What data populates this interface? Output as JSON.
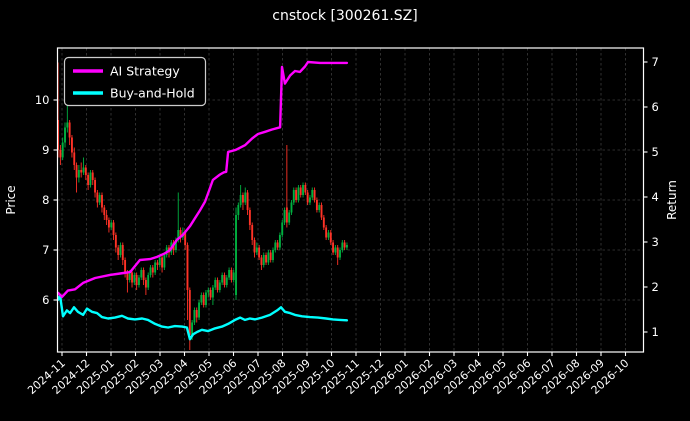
{
  "title": "cnstock [300261.SZ]",
  "colors": {
    "background": "#000000",
    "text": "#ffffff",
    "grid": "#3d3d3d",
    "spine": "#ffffff",
    "candle_up": "#00b140",
    "candle_down": "#ff3226",
    "ai_strategy": "#ff00ff",
    "buy_and_hold": "#00ffff",
    "legend_border": "#cccccc"
  },
  "legend": {
    "entries": [
      {
        "label": "AI Strategy",
        "color": "#ff00ff"
      },
      {
        "label": "Buy-and-Hold",
        "color": "#00ffff"
      }
    ]
  },
  "chart_data": {
    "type": "candlestick+line",
    "title": "cnstock [300261.SZ]",
    "ylabel_left": "Price",
    "ylabel_right": "Return",
    "grid": true,
    "legend_position": "upper left",
    "x_tick_labels": [
      "2024-11",
      "2024-12",
      "2025-01",
      "2025-02",
      "2025-03",
      "2025-04",
      "2025-05",
      "2025-06",
      "2025-07",
      "2025-08",
      "2025-09",
      "2025-10",
      "2025-11",
      "2025-12",
      "2026-01",
      "2026-02",
      "2026-03",
      "2026-04",
      "2026-05",
      "2026-06",
      "2026-07",
      "2026-08",
      "2026-09",
      "2026-10"
    ],
    "yticks_left": [
      6,
      7,
      8,
      9,
      10
    ],
    "ylim_left": [
      4.96,
      11.04
    ],
    "yticks_right": [
      1,
      2,
      3,
      4,
      5,
      6,
      7
    ],
    "ylim_right": [
      0.56,
      7.31
    ],
    "candles_note": "daily OHLC approximated at 126 bars, from 2024-11 through mid 2025-11; x axis extends empty to 2026-10",
    "candles_x_start_month": -0.16,
    "candles_x_step_month": 0.09432,
    "ohlc": [
      [
        9.6,
        10.75,
        8.85,
        9.0
      ],
      [
        9.0,
        9.1,
        8.7,
        8.85
      ],
      [
        8.85,
        9.25,
        8.8,
        9.15
      ],
      [
        9.15,
        9.55,
        9.05,
        9.45
      ],
      [
        9.45,
        9.9,
        9.35,
        9.55
      ],
      [
        9.55,
        9.6,
        9.1,
        9.25
      ],
      [
        9.25,
        9.3,
        8.85,
        8.95
      ],
      [
        8.95,
        9.05,
        8.6,
        8.7
      ],
      [
        8.7,
        8.75,
        8.15,
        8.45
      ],
      [
        8.45,
        8.7,
        8.35,
        8.6
      ],
      [
        8.6,
        8.75,
        8.45,
        8.55
      ],
      [
        8.55,
        8.85,
        8.5,
        8.65
      ],
      [
        8.65,
        8.7,
        8.4,
        8.5
      ],
      [
        8.5,
        8.55,
        8.2,
        8.3
      ],
      [
        8.3,
        8.6,
        8.25,
        8.55
      ],
      [
        8.55,
        8.6,
        8.3,
        8.4
      ],
      [
        8.4,
        8.45,
        8.05,
        8.15
      ],
      [
        8.15,
        8.2,
        7.85,
        7.95
      ],
      [
        7.95,
        8.15,
        7.9,
        8.1
      ],
      [
        8.1,
        8.15,
        7.75,
        7.85
      ],
      [
        7.85,
        7.9,
        7.6,
        7.7
      ],
      [
        7.7,
        7.8,
        7.5,
        7.6
      ],
      [
        7.6,
        7.65,
        7.35,
        7.45
      ],
      [
        7.45,
        7.6,
        7.4,
        7.55
      ],
      [
        7.55,
        7.6,
        7.2,
        7.3
      ],
      [
        7.3,
        7.35,
        6.95,
        7.05
      ],
      [
        7.05,
        7.1,
        6.8,
        6.9
      ],
      [
        6.9,
        7.15,
        6.85,
        7.1
      ],
      [
        7.1,
        7.15,
        6.7,
        6.8
      ],
      [
        6.8,
        6.85,
        6.45,
        6.55
      ],
      [
        6.55,
        6.6,
        6.15,
        6.4
      ],
      [
        6.4,
        6.6,
        6.35,
        6.55
      ],
      [
        6.55,
        6.6,
        6.25,
        6.35
      ],
      [
        6.35,
        6.55,
        6.3,
        6.5
      ],
      [
        6.5,
        6.55,
        6.2,
        6.3
      ],
      [
        6.3,
        6.5,
        6.25,
        6.45
      ],
      [
        6.45,
        6.65,
        6.4,
        6.6
      ],
      [
        6.6,
        6.65,
        6.3,
        6.4
      ],
      [
        6.4,
        6.45,
        6.1,
        6.25
      ],
      [
        6.25,
        6.55,
        6.2,
        6.5
      ],
      [
        6.5,
        6.7,
        6.45,
        6.65
      ],
      [
        6.65,
        6.7,
        6.45,
        6.55
      ],
      [
        6.55,
        6.8,
        6.5,
        6.75
      ],
      [
        6.75,
        6.8,
        6.6,
        6.7
      ],
      [
        6.7,
        6.9,
        6.65,
        6.85
      ],
      [
        6.85,
        6.9,
        6.55,
        6.65
      ],
      [
        6.65,
        6.95,
        6.6,
        6.9
      ],
      [
        6.9,
        7.1,
        6.85,
        7.05
      ],
      [
        7.05,
        7.1,
        6.85,
        6.95
      ],
      [
        6.95,
        7.2,
        6.9,
        7.15
      ],
      [
        7.15,
        7.2,
        6.9,
        7.0
      ],
      [
        7.0,
        7.25,
        6.95,
        7.2
      ],
      [
        7.2,
        8.15,
        7.15,
        7.4
      ],
      [
        7.4,
        7.45,
        7.15,
        7.25
      ],
      [
        7.25,
        7.45,
        7.2,
        7.35
      ],
      [
        7.35,
        7.4,
        7.0,
        7.1
      ],
      [
        7.1,
        7.15,
        5.6,
        6.2
      ],
      [
        6.2,
        6.25,
        5.0,
        5.3
      ],
      [
        5.3,
        5.6,
        5.2,
        5.55
      ],
      [
        5.55,
        5.85,
        5.5,
        5.8
      ],
      [
        5.8,
        5.85,
        5.55,
        5.65
      ],
      [
        5.65,
        6.0,
        5.6,
        5.95
      ],
      [
        5.95,
        6.15,
        5.9,
        6.1
      ],
      [
        6.1,
        6.15,
        5.85,
        5.9
      ],
      [
        5.9,
        6.2,
        5.85,
        6.15
      ],
      [
        6.15,
        6.25,
        6.05,
        6.2
      ],
      [
        6.2,
        6.25,
        6.0,
        6.05
      ],
      [
        6.05,
        6.3,
        5.9,
        6.25
      ],
      [
        6.25,
        6.45,
        6.2,
        6.4
      ],
      [
        6.4,
        6.45,
        6.15,
        6.2
      ],
      [
        6.2,
        6.4,
        6.15,
        6.35
      ],
      [
        6.35,
        6.55,
        6.3,
        6.5
      ],
      [
        6.5,
        6.55,
        6.25,
        6.3
      ],
      [
        6.3,
        6.5,
        6.25,
        6.45
      ],
      [
        6.45,
        6.65,
        6.4,
        6.6
      ],
      [
        6.6,
        6.65,
        6.35,
        6.4
      ],
      [
        6.4,
        6.6,
        6.35,
        6.55
      ],
      [
        6.1,
        7.85,
        6.0,
        7.7
      ],
      [
        7.7,
        7.95,
        7.6,
        7.9
      ],
      [
        7.9,
        8.3,
        7.85,
        8.1
      ],
      [
        8.1,
        8.15,
        7.8,
        7.95
      ],
      [
        7.95,
        8.25,
        7.9,
        8.15
      ],
      [
        8.15,
        8.2,
        7.7,
        7.8
      ],
      [
        7.8,
        7.85,
        7.4,
        7.5
      ],
      [
        7.5,
        7.55,
        7.1,
        7.2
      ],
      [
        7.2,
        7.25,
        6.85,
        6.95
      ],
      [
        6.95,
        7.15,
        6.9,
        7.05
      ],
      [
        7.05,
        7.1,
        6.8,
        6.85
      ],
      [
        6.85,
        6.9,
        6.6,
        6.7
      ],
      [
        6.7,
        6.95,
        6.65,
        6.9
      ],
      [
        6.9,
        6.95,
        6.7,
        6.75
      ],
      [
        6.75,
        7.0,
        6.7,
        6.95
      ],
      [
        6.95,
        7.0,
        6.75,
        6.8
      ],
      [
        6.8,
        7.05,
        6.75,
        7.0
      ],
      [
        7.0,
        7.2,
        6.95,
        7.15
      ],
      [
        7.15,
        7.2,
        7.0,
        7.05
      ],
      [
        7.05,
        7.35,
        7.0,
        7.3
      ],
      [
        7.3,
        7.6,
        7.25,
        7.55
      ],
      [
        7.55,
        7.85,
        7.5,
        7.8
      ],
      [
        7.85,
        9.1,
        7.45,
        7.55
      ],
      [
        7.55,
        7.8,
        7.5,
        7.75
      ],
      [
        7.75,
        8.0,
        7.7,
        7.95
      ],
      [
        7.95,
        8.25,
        7.9,
        8.2
      ],
      [
        8.2,
        8.25,
        7.95,
        8.0
      ],
      [
        8.0,
        8.3,
        7.95,
        8.25
      ],
      [
        8.25,
        8.3,
        8.05,
        8.1
      ],
      [
        8.1,
        8.35,
        8.05,
        8.3
      ],
      [
        8.3,
        8.35,
        8.1,
        8.15
      ],
      [
        8.15,
        8.2,
        7.9,
        7.95
      ],
      [
        7.95,
        8.1,
        7.9,
        8.05
      ],
      [
        8.05,
        8.25,
        8.0,
        8.2
      ],
      [
        8.2,
        8.25,
        7.95,
        8.0
      ],
      [
        8.0,
        8.05,
        7.75,
        7.8
      ],
      [
        7.8,
        7.95,
        7.75,
        7.9
      ],
      [
        7.9,
        7.95,
        7.6,
        7.65
      ],
      [
        7.65,
        7.7,
        7.4,
        7.45
      ],
      [
        7.45,
        7.5,
        7.2,
        7.25
      ],
      [
        7.25,
        7.4,
        7.2,
        7.35
      ],
      [
        7.35,
        7.4,
        7.1,
        7.15
      ],
      [
        7.15,
        7.2,
        6.9,
        6.95
      ],
      [
        6.95,
        7.1,
        6.9,
        7.05
      ],
      [
        7.05,
        7.1,
        6.7,
        6.85
      ],
      [
        6.85,
        7.05,
        6.8,
        7.0
      ],
      [
        7.0,
        7.2,
        6.95,
        7.15
      ],
      [
        7.15,
        7.2,
        7.0,
        7.05
      ],
      [
        7.05,
        7.15,
        7.0,
        7.1
      ]
    ],
    "series": [
      {
        "name": "AI Strategy",
        "axis": "right",
        "color": "#ff00ff",
        "points": [
          [
            -0.16,
            1.87
          ],
          [
            0,
            1.78
          ],
          [
            0.24,
            1.92
          ],
          [
            0.53,
            1.95
          ],
          [
            0.86,
            2.09
          ],
          [
            1.35,
            2.2
          ],
          [
            1.96,
            2.27
          ],
          [
            2.37,
            2.3
          ],
          [
            2.78,
            2.33
          ],
          [
            3.18,
            2.6
          ],
          [
            3.59,
            2.62
          ],
          [
            3.88,
            2.67
          ],
          [
            4.2,
            2.75
          ],
          [
            4.41,
            2.82
          ],
          [
            4.69,
            3.05
          ],
          [
            4.94,
            3.16
          ],
          [
            5.22,
            3.35
          ],
          [
            5.43,
            3.53
          ],
          [
            5.63,
            3.7
          ],
          [
            5.84,
            3.9
          ],
          [
            6.04,
            4.2
          ],
          [
            6.16,
            4.38
          ],
          [
            6.45,
            4.5
          ],
          [
            6.61,
            4.55
          ],
          [
            6.7,
            4.56
          ],
          [
            6.78,
            5.0
          ],
          [
            7.1,
            5.05
          ],
          [
            7.47,
            5.15
          ],
          [
            7.76,
            5.3
          ],
          [
            8.0,
            5.4
          ],
          [
            8.29,
            5.45
          ],
          [
            8.57,
            5.5
          ],
          [
            8.9,
            5.55
          ],
          [
            8.98,
            6.89
          ],
          [
            9.1,
            6.52
          ],
          [
            9.31,
            6.7
          ],
          [
            9.51,
            6.8
          ],
          [
            9.71,
            6.78
          ],
          [
            9.92,
            6.9
          ],
          [
            10.04,
            7.0
          ],
          [
            10.53,
            6.98
          ],
          [
            11.14,
            6.98
          ],
          [
            11.63,
            6.98
          ]
        ]
      },
      {
        "name": "Buy-and-Hold",
        "axis": "right",
        "color": "#00ffff",
        "points": [
          [
            -0.16,
            1.72
          ],
          [
            -0.08,
            1.82
          ],
          [
            0.04,
            1.35
          ],
          [
            0.2,
            1.48
          ],
          [
            0.33,
            1.42
          ],
          [
            0.49,
            1.55
          ],
          [
            0.65,
            1.45
          ],
          [
            0.86,
            1.38
          ],
          [
            1.02,
            1.52
          ],
          [
            1.22,
            1.45
          ],
          [
            1.43,
            1.42
          ],
          [
            1.63,
            1.33
          ],
          [
            1.88,
            1.3
          ],
          [
            2.16,
            1.32
          ],
          [
            2.45,
            1.36
          ],
          [
            2.69,
            1.3
          ],
          [
            2.98,
            1.28
          ],
          [
            3.27,
            1.3
          ],
          [
            3.51,
            1.27
          ],
          [
            3.8,
            1.18
          ],
          [
            4.08,
            1.12
          ],
          [
            4.33,
            1.1
          ],
          [
            4.61,
            1.13
          ],
          [
            4.9,
            1.12
          ],
          [
            5.1,
            1.1
          ],
          [
            5.22,
            0.84
          ],
          [
            5.35,
            0.95
          ],
          [
            5.51,
            1.0
          ],
          [
            5.71,
            1.05
          ],
          [
            5.96,
            1.02
          ],
          [
            6.24,
            1.08
          ],
          [
            6.53,
            1.12
          ],
          [
            6.78,
            1.18
          ],
          [
            7.06,
            1.27
          ],
          [
            7.27,
            1.32
          ],
          [
            7.47,
            1.27
          ],
          [
            7.67,
            1.3
          ],
          [
            7.88,
            1.28
          ],
          [
            8.16,
            1.32
          ],
          [
            8.49,
            1.38
          ],
          [
            8.78,
            1.48
          ],
          [
            8.94,
            1.55
          ],
          [
            9.1,
            1.45
          ],
          [
            9.31,
            1.42
          ],
          [
            9.51,
            1.38
          ],
          [
            9.8,
            1.35
          ],
          [
            10.12,
            1.33
          ],
          [
            10.45,
            1.32
          ],
          [
            10.78,
            1.3
          ],
          [
            11.06,
            1.28
          ],
          [
            11.35,
            1.27
          ],
          [
            11.63,
            1.26
          ]
        ]
      }
    ]
  }
}
